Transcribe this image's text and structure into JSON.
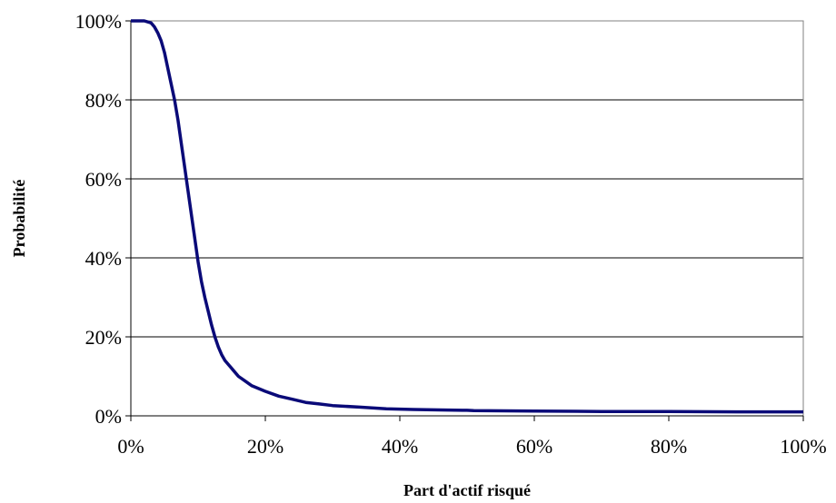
{
  "chart_data": {
    "type": "line",
    "title": "",
    "xlabel": "Part d'actif risqué",
    "ylabel": "Probabilité",
    "xlim": [
      0,
      100
    ],
    "ylim": [
      0,
      100
    ],
    "x_ticks": [
      "0%",
      "20%",
      "40%",
      "60%",
      "80%",
      "100%"
    ],
    "y_ticks": [
      "0%",
      "20%",
      "40%",
      "60%",
      "80%",
      "100%"
    ],
    "grid": "horizontal",
    "legend": "none",
    "series": [
      {
        "color": "#0a0a78",
        "points": [
          [
            0,
            100
          ],
          [
            2,
            100
          ],
          [
            3,
            99.5
          ],
          [
            3.5,
            98.5
          ],
          [
            4,
            97
          ],
          [
            4.5,
            95
          ],
          [
            5,
            92
          ],
          [
            5.5,
            88
          ],
          [
            6,
            84
          ],
          [
            6.5,
            80
          ],
          [
            7,
            75
          ],
          [
            7.5,
            69
          ],
          [
            8,
            63
          ],
          [
            8.5,
            57
          ],
          [
            9,
            51
          ],
          [
            9.5,
            45
          ],
          [
            10,
            39
          ],
          [
            10.5,
            34
          ],
          [
            11,
            30
          ],
          [
            11.5,
            26.5
          ],
          [
            12,
            23
          ],
          [
            12.5,
            20
          ],
          [
            13,
            17.5
          ],
          [
            13.5,
            15.5
          ],
          [
            14,
            14
          ],
          [
            15,
            12
          ],
          [
            16,
            10
          ],
          [
            17,
            8.8
          ],
          [
            18,
            7.6
          ],
          [
            20,
            6.2
          ],
          [
            22,
            5
          ],
          [
            24,
            4.2
          ],
          [
            26,
            3.4
          ],
          [
            28,
            3
          ],
          [
            30,
            2.6
          ],
          [
            34,
            2.2
          ],
          [
            38,
            1.8
          ],
          [
            42,
            1.6
          ],
          [
            46,
            1.5
          ],
          [
            50,
            1.4
          ],
          [
            51,
            1.3
          ],
          [
            60,
            1.2
          ],
          [
            70,
            1.1
          ],
          [
            80,
            1.1
          ],
          [
            90,
            1
          ],
          [
            100,
            1
          ]
        ]
      }
    ]
  }
}
